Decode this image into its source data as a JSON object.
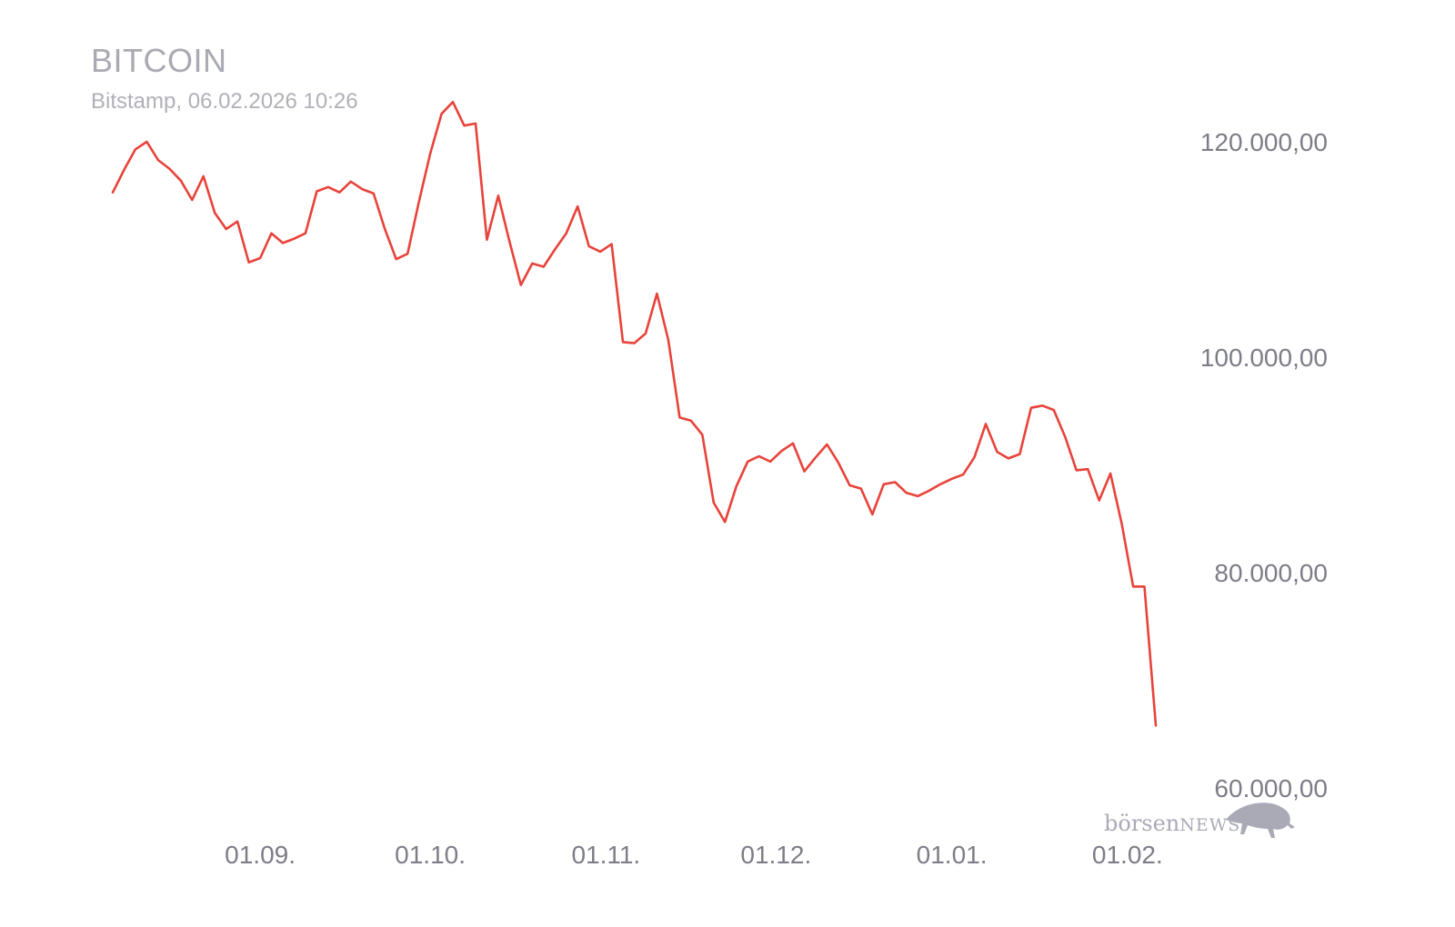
{
  "header": {
    "title": "BITCOIN",
    "subtitle": "Bitstamp, 06.02.2026 10:26"
  },
  "watermark": {
    "brand_prefix": "börsen",
    "brand_suffix": "NEWS",
    "icon": "bull-icon"
  },
  "colors": {
    "line": "#e8433a",
    "tick": "#7d7d88",
    "title": "#aaaab3"
  },
  "chart_data": {
    "type": "line",
    "title": "BITCOIN",
    "subtitle": "Bitstamp, 06.02.2026 10:26",
    "xlabel": "",
    "ylabel": "",
    "ylim": [
      60000,
      120000
    ],
    "grid": false,
    "legend": "none",
    "y_axis_side": "right",
    "yticks": [
      {
        "value": 120000,
        "label": "120.000,00"
      },
      {
        "value": 100000,
        "label": "100.000,00"
      },
      {
        "value": 80000,
        "label": "80.000,00"
      },
      {
        "value": 60000,
        "label": "60.000,00"
      }
    ],
    "xticks": [
      {
        "date": "2025-09-01",
        "label": "01.09."
      },
      {
        "date": "2025-10-01",
        "label": "01.10."
      },
      {
        "date": "2025-11-01",
        "label": "01.11."
      },
      {
        "date": "2025-12-01",
        "label": "01.12."
      },
      {
        "date": "2026-01-01",
        "label": "01.01."
      },
      {
        "date": "2026-02-01",
        "label": "01.02."
      }
    ],
    "series": [
      {
        "points": [
          [
            "2025-08-06",
            115300
          ],
          [
            "2025-08-08",
            117400
          ],
          [
            "2025-08-10",
            119300
          ],
          [
            "2025-08-12",
            120000
          ],
          [
            "2025-08-14",
            118300
          ],
          [
            "2025-08-16",
            117500
          ],
          [
            "2025-08-18",
            116400
          ],
          [
            "2025-08-20",
            114600
          ],
          [
            "2025-08-22",
            116800
          ],
          [
            "2025-08-24",
            113400
          ],
          [
            "2025-08-26",
            111900
          ],
          [
            "2025-08-28",
            112600
          ],
          [
            "2025-08-30",
            108800
          ],
          [
            "2025-09-01",
            109200
          ],
          [
            "2025-09-03",
            111500
          ],
          [
            "2025-09-05",
            110600
          ],
          [
            "2025-09-07",
            111000
          ],
          [
            "2025-09-09",
            111500
          ],
          [
            "2025-09-11",
            115400
          ],
          [
            "2025-09-13",
            115800
          ],
          [
            "2025-09-15",
            115300
          ],
          [
            "2025-09-17",
            116300
          ],
          [
            "2025-09-19",
            115600
          ],
          [
            "2025-09-21",
            115200
          ],
          [
            "2025-09-23",
            111900
          ],
          [
            "2025-09-25",
            109100
          ],
          [
            "2025-09-27",
            109600
          ],
          [
            "2025-09-29",
            114400
          ],
          [
            "2025-10-01",
            118900
          ],
          [
            "2025-10-03",
            122600
          ],
          [
            "2025-10-05",
            123700
          ],
          [
            "2025-10-07",
            121500
          ],
          [
            "2025-10-09",
            121700
          ],
          [
            "2025-10-11",
            110900
          ],
          [
            "2025-10-13",
            115000
          ],
          [
            "2025-10-15",
            110700
          ],
          [
            "2025-10-17",
            106700
          ],
          [
            "2025-10-19",
            108700
          ],
          [
            "2025-10-21",
            108400
          ],
          [
            "2025-10-23",
            110000
          ],
          [
            "2025-10-25",
            111500
          ],
          [
            "2025-10-27",
            114000
          ],
          [
            "2025-10-29",
            110300
          ],
          [
            "2025-10-31",
            109800
          ],
          [
            "2025-11-02",
            110500
          ],
          [
            "2025-11-04",
            101400
          ],
          [
            "2025-11-06",
            101300
          ],
          [
            "2025-11-08",
            102200
          ],
          [
            "2025-11-10",
            105900
          ],
          [
            "2025-11-12",
            101600
          ],
          [
            "2025-11-14",
            94400
          ],
          [
            "2025-11-16",
            94100
          ],
          [
            "2025-11-18",
            92800
          ],
          [
            "2025-11-20",
            86500
          ],
          [
            "2025-11-22",
            84700
          ],
          [
            "2025-11-24",
            88000
          ],
          [
            "2025-11-26",
            90300
          ],
          [
            "2025-11-28",
            90800
          ],
          [
            "2025-11-30",
            90300
          ],
          [
            "2025-12-02",
            91300
          ],
          [
            "2025-12-04",
            92000
          ],
          [
            "2025-12-06",
            89400
          ],
          [
            "2025-12-08",
            90700
          ],
          [
            "2025-12-10",
            91900
          ],
          [
            "2025-12-12",
            90200
          ],
          [
            "2025-12-14",
            88100
          ],
          [
            "2025-12-16",
            87800
          ],
          [
            "2025-12-18",
            85400
          ],
          [
            "2025-12-20",
            88200
          ],
          [
            "2025-12-22",
            88400
          ],
          [
            "2025-12-24",
            87400
          ],
          [
            "2025-12-26",
            87100
          ],
          [
            "2025-12-28",
            87600
          ],
          [
            "2025-12-30",
            88200
          ],
          [
            "2026-01-01",
            88700
          ],
          [
            "2026-01-03",
            89100
          ],
          [
            "2026-01-05",
            90700
          ],
          [
            "2026-01-07",
            93800
          ],
          [
            "2026-01-09",
            91200
          ],
          [
            "2026-01-11",
            90600
          ],
          [
            "2026-01-13",
            91000
          ],
          [
            "2026-01-15",
            95300
          ],
          [
            "2026-01-17",
            95500
          ],
          [
            "2026-01-19",
            95100
          ],
          [
            "2026-01-21",
            92600
          ],
          [
            "2026-01-23",
            89500
          ],
          [
            "2026-01-25",
            89600
          ],
          [
            "2026-01-27",
            86700
          ],
          [
            "2026-01-29",
            89200
          ],
          [
            "2026-01-31",
            84500
          ],
          [
            "2026-02-02",
            78700
          ],
          [
            "2026-02-04",
            78700
          ],
          [
            "2026-02-06",
            65800
          ]
        ]
      }
    ]
  }
}
